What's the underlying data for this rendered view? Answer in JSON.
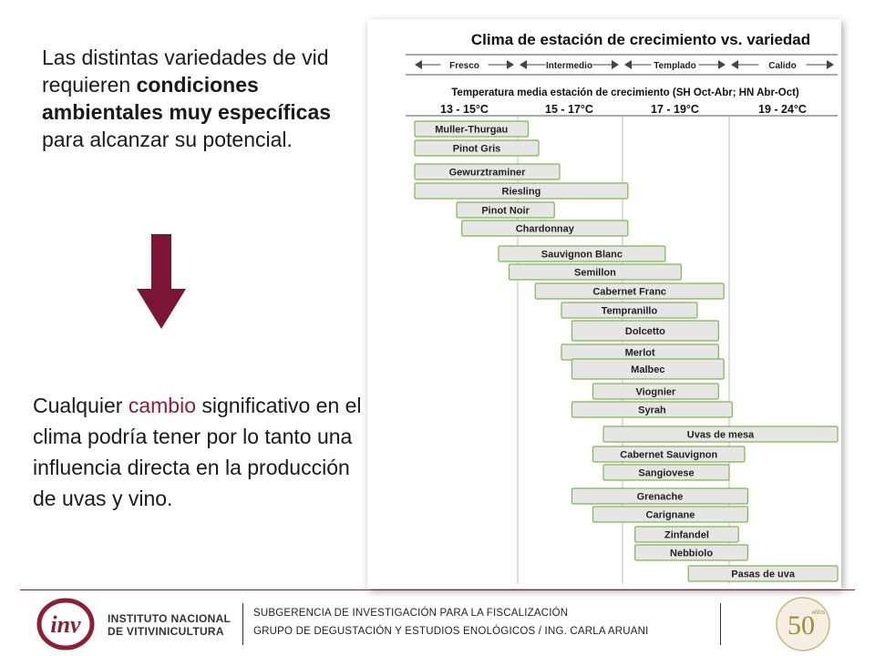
{
  "left_text": {
    "p1_a": "Las distintas variedades de vid requieren ",
    "p1_b": "condiciones ambientales muy específicas",
    "p1_c": " para alcanzar su potencial.",
    "p2_a": "Cualquier ",
    "p2_b": "cambio",
    "p2_c": " significativo en el clima podría tener por lo tanto una influencia directa en la producción de uvas y vino."
  },
  "colors": {
    "accent": "#8b2035",
    "bar_fill": "#e6e6e6",
    "bar_border": "#7db84c"
  },
  "chart": {
    "title": "Clima de estación de crecimiento vs. variedad",
    "zones": [
      "Fresco",
      "Intermedio",
      "Templado",
      "Calido"
    ],
    "subtitle": "Temperatura media estación de crecimiento (SH Oct-Abr; HN Abr-Oct)",
    "ranges": [
      "13 - 15°C",
      "15 - 17°C",
      "17 - 19°C",
      "19 - 24°C"
    ],
    "varieties": [
      {
        "name": "Muller-Thurgau",
        "from": 13.0,
        "to": 15.2
      },
      {
        "name": "Pinot Gris",
        "from": 13.0,
        "to": 15.4
      },
      {
        "name": "Gewurztraminer",
        "from": 13.0,
        "to": 15.8
      },
      {
        "name": "Riesling",
        "from": 13.0,
        "to": 17.1
      },
      {
        "name": "Pinot Noir",
        "from": 13.8,
        "to": 15.7
      },
      {
        "name": "Chardonnay",
        "from": 13.9,
        "to": 17.1
      },
      {
        "name": "Sauvignon Blanc",
        "from": 14.6,
        "to": 17.8
      },
      {
        "name": "Semillon",
        "from": 14.8,
        "to": 18.1
      },
      {
        "name": "Cabernet Franc",
        "from": 15.3,
        "to": 18.9
      },
      {
        "name": "Tempranillo",
        "from": 15.8,
        "to": 18.4
      },
      {
        "name": "Dolcetto",
        "from": 16.0,
        "to": 18.8
      },
      {
        "name": "Merlot",
        "from": 15.8,
        "to": 18.8
      },
      {
        "name": "Malbec",
        "from": 16.0,
        "to": 18.9
      },
      {
        "name": "Viognier",
        "from": 16.4,
        "to": 18.8
      },
      {
        "name": "Syrah",
        "from": 16.0,
        "to": 19.1
      },
      {
        "name": "Uvas de mesa",
        "from": 16.6,
        "to": 22.5
      },
      {
        "name": "Cabernet Sauvignon",
        "from": 16.4,
        "to": 19.5
      },
      {
        "name": "Sangiovese",
        "from": 16.6,
        "to": 19.0
      },
      {
        "name": "Grenache",
        "from": 16.0,
        "to": 19.6
      },
      {
        "name": "Carignane",
        "from": 16.4,
        "to": 19.6
      },
      {
        "name": "Zinfandel",
        "from": 17.2,
        "to": 19.3
      },
      {
        "name": "Nebbiolo",
        "from": 17.2,
        "to": 19.6
      },
      {
        "name": "Pasas de uva",
        "from": 18.2,
        "to": 22.5
      }
    ]
  },
  "footer": {
    "logo_text": "inv",
    "institute_line1": "INSTITUTO NACIONAL",
    "institute_line2": "DE VITIVINICULTURA",
    "line1": "SUBGERENCIA DE INVESTIGACIÓN PARA LA FISCALIZACIÓN",
    "line2": "GRUPO DE DEGUSTACIÓN Y ESTUDIOS ENOLÓGICOS / ING. CARLA ARUANI",
    "anniv_number": "50",
    "anniv_label": "AÑOS"
  }
}
